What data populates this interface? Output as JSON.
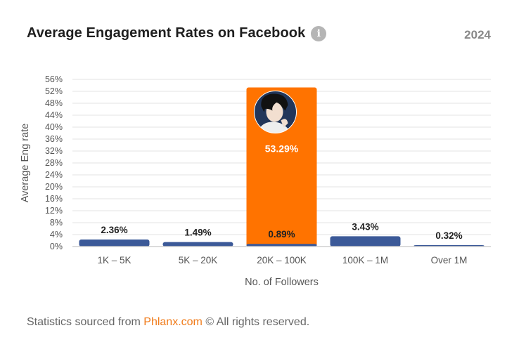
{
  "header": {
    "title": "Average Engagement Rates on Facebook",
    "info_icon": "info-icon",
    "year": "2024"
  },
  "footer": {
    "prefix": "Statistics sourced from",
    "link": "Phlanx.com",
    "suffix": "© All rights reserved."
  },
  "colors": {
    "bar": "#3b5998",
    "highlight": "#ff7300",
    "grid": "#e3e3e3",
    "text": "#555555"
  },
  "chart_data": {
    "type": "bar",
    "categories": [
      "1K – 5K",
      "5K – 20K",
      "20K – 100K",
      "100K – 1M",
      "Over 1M"
    ],
    "values": [
      2.36,
      1.49,
      0.89,
      3.43,
      0.32
    ],
    "labels": [
      "2.36%",
      "1.49%",
      "0.89%",
      "3.43%",
      "0.32%"
    ],
    "highlight": {
      "category": "20K – 100K",
      "value": 53.29,
      "label": "53.29%",
      "avatar_icon": "avatar-icon"
    },
    "xlabel": "No. of Followers",
    "ylabel": "Average Eng rate",
    "ylim": [
      0,
      56
    ],
    "yticks": [
      0,
      4,
      8,
      12,
      16,
      20,
      24,
      28,
      32,
      36,
      40,
      44,
      48,
      52,
      56
    ],
    "ytick_labels": [
      "0%",
      "4%",
      "8%",
      "12%",
      "16%",
      "20%",
      "24%",
      "28%",
      "32%",
      "36%",
      "40%",
      "44%",
      "48%",
      "52%",
      "56%"
    ],
    "grid": true,
    "legend": false
  }
}
